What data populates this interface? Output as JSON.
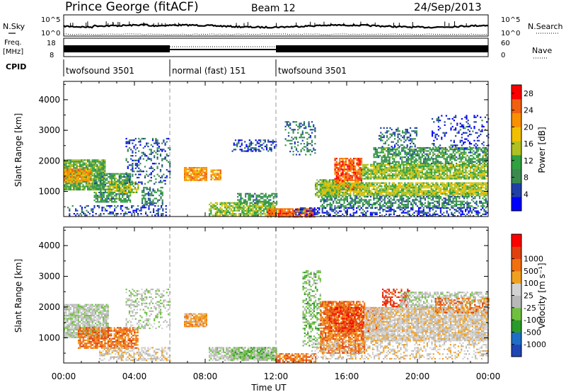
{
  "header": {
    "station": "Prince George (fitACF)",
    "beam": "Beam 12",
    "date": "24/Sep/2013"
  },
  "top_panels": {
    "nsky_label": "N.Sky",
    "nsky_ticks": [
      "10^5",
      "10^0"
    ],
    "nsearch_label": "N.Search",
    "nsearch_ticks": [
      "10^5",
      "10^0"
    ],
    "freq_label": "Freq.",
    "freq_unit": "[MHz]",
    "freq_ticks": [
      "18",
      "8"
    ],
    "nave_label": "Nave",
    "nave_ticks": [
      "60",
      "0"
    ],
    "cpid_label": "CPID"
  },
  "cpid_segments": [
    {
      "label": "twofsound 3501",
      "start_h": 0,
      "end_h": 6
    },
    {
      "label": "normal (fast) 151",
      "start_h": 6,
      "end_h": 12
    },
    {
      "label": "twofsound 3501",
      "start_h": 12,
      "end_h": 24
    }
  ],
  "colors": {
    "power": [
      "#0000ff",
      "#2040a8",
      "#3a8a50",
      "#30a040",
      "#b0c020",
      "#f0c000",
      "#f89000",
      "#f06010",
      "#ff0000"
    ],
    "velocity": [
      "#1e46b4",
      "#1e6ec8",
      "#2a9a2a",
      "#70c040",
      "#b8b8b8",
      "#d2d2d2",
      "#f0a020",
      "#f07010",
      "#e04010",
      "#ff0000"
    ]
  },
  "chart_data": [
    {
      "type": "heatmap",
      "name": "power",
      "xlabel": "",
      "ylabel": "Slant Range [km]",
      "xlim": [
        0,
        24
      ],
      "ylim": [
        180,
        4600
      ],
      "yticks": [
        1000,
        2000,
        3000,
        4000
      ],
      "colorbar_label": "Power [dB]",
      "colorbar_ticks": [
        "4",
        "8",
        "12",
        "16",
        "20",
        "24",
        "28"
      ],
      "colorbar_range": [
        0,
        30
      ],
      "regions": [
        {
          "t0": 0.0,
          "t1": 2.3,
          "r0": 1050,
          "r1": 2050,
          "v": 12,
          "d": 0.9
        },
        {
          "t0": 0.0,
          "t1": 1.5,
          "r0": 1300,
          "r1": 1750,
          "v": 21,
          "d": 0.85
        },
        {
          "t0": 1.7,
          "t1": 3.8,
          "r0": 650,
          "r1": 1600,
          "v": 10,
          "d": 0.7
        },
        {
          "t0": 2.5,
          "t1": 4.2,
          "r0": 950,
          "r1": 1350,
          "v": 15,
          "d": 0.55
        },
        {
          "t0": 3.5,
          "t1": 6.0,
          "r0": 1250,
          "r1": 2750,
          "v": 6,
          "d": 0.28
        },
        {
          "t0": 4.4,
          "t1": 5.6,
          "r0": 550,
          "r1": 1150,
          "v": 8,
          "d": 0.5
        },
        {
          "t0": 0.2,
          "t1": 5.8,
          "r0": 200,
          "r1": 550,
          "v": 5,
          "d": 0.35
        },
        {
          "t0": 6.8,
          "t1": 8.1,
          "r0": 1350,
          "r1": 1800,
          "v": 22,
          "d": 0.9
        },
        {
          "t0": 8.3,
          "t1": 8.9,
          "r0": 1400,
          "r1": 1720,
          "v": 21,
          "d": 0.8
        },
        {
          "t0": 8.2,
          "t1": 12.0,
          "r0": 220,
          "r1": 650,
          "v": 14,
          "d": 0.8
        },
        {
          "t0": 9.8,
          "t1": 12.0,
          "r0": 600,
          "r1": 950,
          "v": 9,
          "d": 0.6
        },
        {
          "t0": 11.5,
          "t1": 14.2,
          "r0": 180,
          "r1": 450,
          "v": 25,
          "d": 0.85
        },
        {
          "t0": 9.5,
          "t1": 12.0,
          "r0": 2300,
          "r1": 2700,
          "v": 5,
          "d": 0.4
        },
        {
          "t0": 12.5,
          "t1": 14.2,
          "r0": 2200,
          "r1": 3300,
          "v": 7,
          "d": 0.3
        },
        {
          "t0": 14.2,
          "t1": 15.6,
          "r0": 800,
          "r1": 1400,
          "v": 13,
          "d": 0.75
        },
        {
          "t0": 15.3,
          "t1": 16.8,
          "r0": 1050,
          "r1": 2100,
          "v": 25,
          "d": 0.8
        },
        {
          "t0": 14.5,
          "t1": 24.0,
          "r0": 850,
          "r1": 1300,
          "v": 15,
          "d": 0.9
        },
        {
          "t0": 14.5,
          "t1": 24.0,
          "r0": 450,
          "r1": 850,
          "v": 9,
          "d": 0.55
        },
        {
          "t0": 16.8,
          "t1": 24.0,
          "r0": 1400,
          "r1": 1900,
          "v": 14,
          "d": 0.85
        },
        {
          "t0": 17.5,
          "t1": 24.0,
          "r0": 1900,
          "r1": 2450,
          "v": 10,
          "d": 0.65
        },
        {
          "t0": 17.8,
          "t1": 20.0,
          "r0": 2450,
          "r1": 3100,
          "v": 7,
          "d": 0.4
        },
        {
          "t0": 13.0,
          "t1": 24.0,
          "r0": 200,
          "r1": 480,
          "v": 4,
          "d": 0.45
        },
        {
          "t0": 20.8,
          "t1": 24.0,
          "r0": 2400,
          "r1": 3500,
          "v": 4,
          "d": 0.2
        }
      ]
    },
    {
      "type": "heatmap",
      "name": "velocity",
      "xlabel": "Time UT",
      "ylabel": "Slant Range [km]",
      "xlim": [
        0,
        24
      ],
      "xticks": [
        "00:00",
        "04:00",
        "08:00",
        "12:00",
        "16:00",
        "20:00",
        "00:00"
      ],
      "ylim": [
        180,
        4600
      ],
      "yticks": [
        1000,
        2000,
        3000,
        4000
      ],
      "colorbar_label": "Velocity [m s⁻¹]",
      "colorbar_ticks": [
        "-1000",
        "-500",
        "-100",
        "-25",
        "25",
        "100",
        "500",
        "1000"
      ],
      "regions": [
        {
          "t0": 0.0,
          "t1": 2.5,
          "r0": 1000,
          "r1": 2100,
          "v": 4,
          "d": 0.85
        },
        {
          "t0": 0.8,
          "t1": 4.2,
          "r0": 650,
          "r1": 1350,
          "v": 7,
          "d": 0.75
        },
        {
          "t0": 2.0,
          "t1": 6.0,
          "r0": 250,
          "r1": 700,
          "v": 5,
          "d": 0.55
        },
        {
          "t0": 3.5,
          "t1": 6.0,
          "r0": 1300,
          "r1": 2600,
          "v": 4,
          "d": 0.3
        },
        {
          "t0": 6.8,
          "t1": 8.1,
          "r0": 1350,
          "r1": 1800,
          "v": 6,
          "d": 0.9
        },
        {
          "t0": 8.2,
          "t1": 12.0,
          "r0": 250,
          "r1": 700,
          "v": 4,
          "d": 0.8
        },
        {
          "t0": 9.5,
          "t1": 12.0,
          "r0": 300,
          "r1": 700,
          "v": 3,
          "d": 0.6
        },
        {
          "t0": 12.0,
          "t1": 14.2,
          "r0": 200,
          "r1": 500,
          "v": 7,
          "d": 0.7
        },
        {
          "t0": 13.5,
          "t1": 14.5,
          "r0": 700,
          "r1": 3200,
          "v": 3,
          "d": 0.45
        },
        {
          "t0": 14.5,
          "t1": 17.0,
          "r0": 500,
          "r1": 2200,
          "v": 7,
          "d": 0.8
        },
        {
          "t0": 15.0,
          "t1": 18.0,
          "r0": 1200,
          "r1": 2000,
          "v": 8,
          "d": 0.6
        },
        {
          "t0": 17.0,
          "t1": 24.0,
          "r0": 900,
          "r1": 2000,
          "v": 5,
          "d": 0.9
        },
        {
          "t0": 18.0,
          "t1": 19.5,
          "r0": 2000,
          "r1": 2600,
          "v": 8,
          "d": 0.5
        },
        {
          "t0": 19.0,
          "t1": 24.0,
          "r0": 2000,
          "r1": 2500,
          "v": 4,
          "d": 0.6
        },
        {
          "t0": 21.0,
          "t1": 24.0,
          "r0": 1800,
          "r1": 2300,
          "v": 7,
          "d": 0.45
        },
        {
          "t0": 14.0,
          "t1": 24.0,
          "r0": 300,
          "r1": 900,
          "v": 5,
          "d": 0.35
        }
      ]
    }
  ]
}
